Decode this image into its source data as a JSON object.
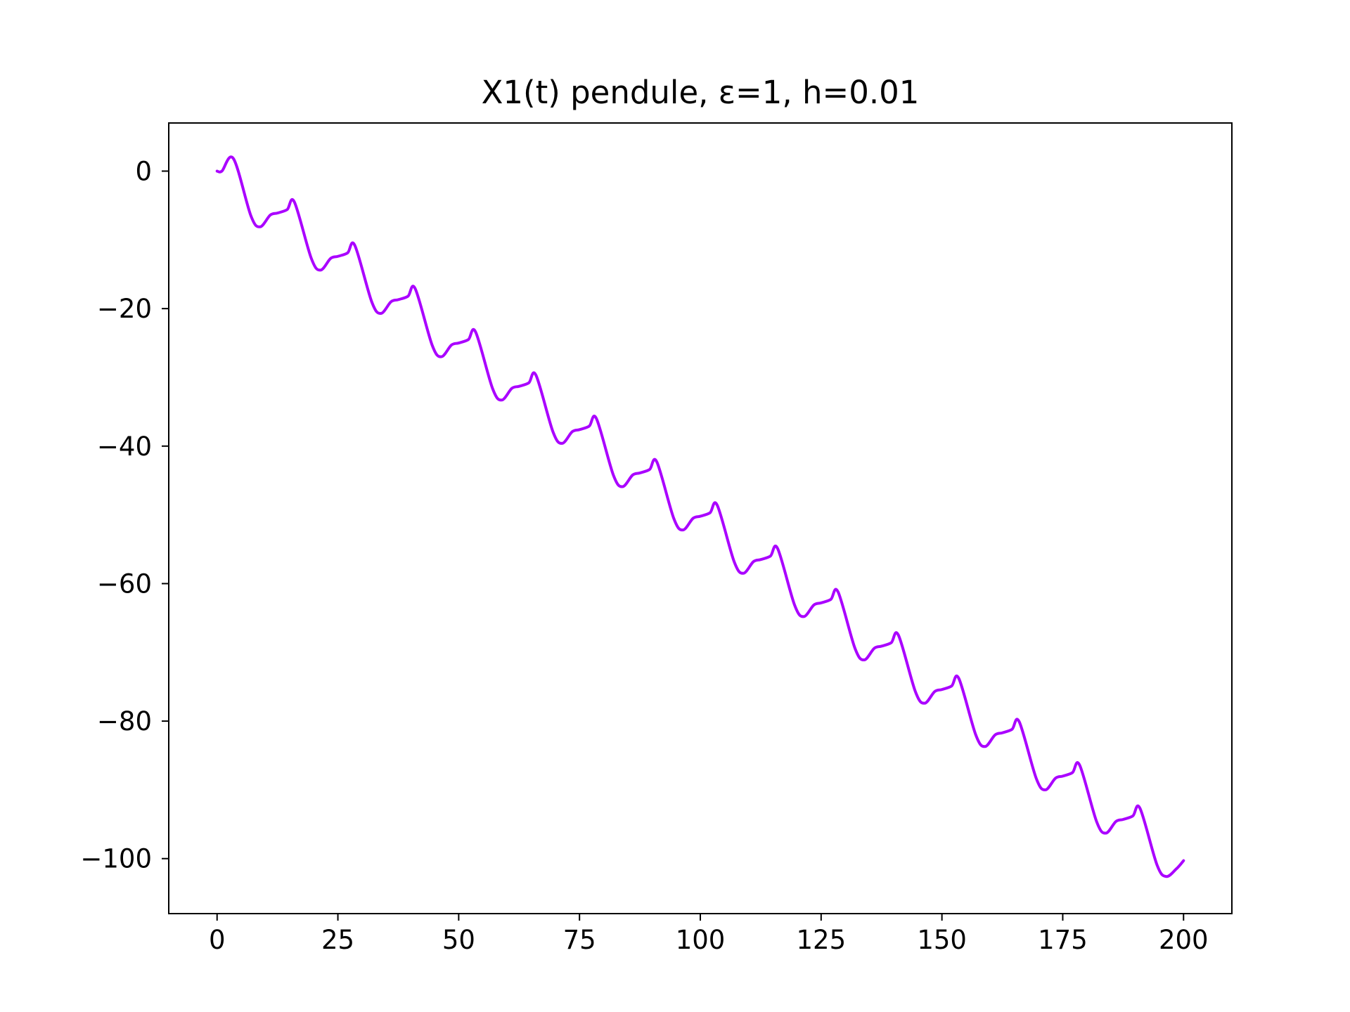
{
  "chart_data": {
    "type": "line",
    "title": "X1(t) pendule, ε=1, h=0.01",
    "xlabel": "",
    "ylabel": "",
    "xlim": [
      -10,
      210
    ],
    "ylim": [
      -108,
      7
    ],
    "xticks": [
      0,
      25,
      50,
      75,
      100,
      125,
      150,
      175,
      200
    ],
    "xtick_labels": [
      "0",
      "25",
      "50",
      "75",
      "100",
      "125",
      "150",
      "175",
      "200"
    ],
    "yticks": [
      0,
      -20,
      -40,
      -60,
      -80,
      -100
    ],
    "ytick_labels": [
      "0",
      "−20",
      "−40",
      "−60",
      "−80",
      "−100"
    ],
    "grid": false,
    "legend": "none",
    "series": [
      {
        "color": "#aa00ff",
        "x": [
          0,
          1,
          3.4,
          7,
          8.9,
          11,
          12.5,
          14.5,
          16,
          19.5,
          21.4,
          23.5,
          25,
          27,
          28.5,
          32,
          33.9,
          36,
          37.5,
          39.5,
          41,
          44.5,
          46.4,
          48.5,
          50,
          52,
          53.5,
          57,
          58.9,
          61,
          62.5,
          64.5,
          66,
          69.5,
          71.4,
          73.5,
          75,
          77,
          78.5,
          82,
          83.9,
          86,
          87.5,
          89.5,
          91,
          94.5,
          96.4,
          98.5,
          100,
          102,
          103.5,
          107,
          108.9,
          111,
          112.5,
          114.5,
          116,
          119.5,
          121.4,
          123.5,
          125,
          127,
          128.5,
          132,
          133.9,
          136,
          137.5,
          139.5,
          141,
          144.5,
          146.4,
          148.5,
          150,
          152,
          153.5,
          157,
          158.9,
          161,
          162.5,
          164.5,
          166,
          169.5,
          171.4,
          173.5,
          175,
          177,
          178.5,
          182,
          183.9,
          186,
          187.5,
          189.5,
          191,
          194.5,
          196.4,
          198.5,
          200
        ],
        "y": [
          0,
          0,
          1.8,
          -6.5,
          -8.1,
          -6.4,
          -6.1,
          -5.6,
          -4.5,
          -12.7,
          -14.4,
          -12.7,
          -12.4,
          -11.9,
          -10.8,
          -19,
          -20.7,
          -19,
          -18.7,
          -18.2,
          -17.1,
          -25.3,
          -27,
          -25.3,
          -25,
          -24.5,
          -23.4,
          -31.6,
          -33.3,
          -31.6,
          -31.3,
          -30.8,
          -29.7,
          -37.9,
          -39.6,
          -37.9,
          -37.6,
          -37.1,
          -36,
          -44.2,
          -45.9,
          -44.2,
          -43.9,
          -43.4,
          -42.3,
          -50.5,
          -52.2,
          -50.5,
          -50.2,
          -49.7,
          -48.6,
          -56.8,
          -58.5,
          -56.8,
          -56.5,
          -56,
          -54.9,
          -63.1,
          -64.8,
          -63.1,
          -62.8,
          -62.3,
          -61.2,
          -69.4,
          -71.1,
          -69.4,
          -69.1,
          -68.6,
          -67.5,
          -75.7,
          -77.4,
          -75.7,
          -75.4,
          -74.9,
          -73.8,
          -82,
          -83.7,
          -82,
          -81.7,
          -81.2,
          -80.1,
          -88.3,
          -90,
          -88.3,
          -88,
          -87.5,
          -86.4,
          -94.6,
          -96.3,
          -94.6,
          -94.3,
          -93.8,
          -92.7,
          -100.9,
          -102.6,
          -101.5,
          -100.3
        ]
      }
    ]
  }
}
